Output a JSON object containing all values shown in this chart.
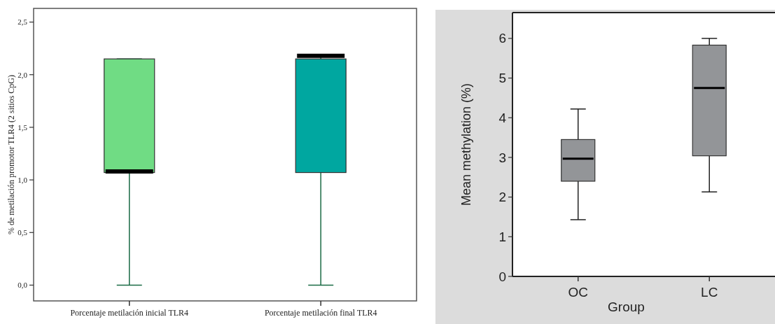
{
  "chart_data": [
    {
      "type": "box",
      "ylabel": "% de metilación promotor TLR4 (2 sitios CpG)",
      "categories": [
        "Porcentaje metilación inicial TLR4",
        "Porcentaje metilación final TLR4"
      ],
      "colors": [
        "#70dc84",
        "#00a7a0"
      ],
      "boxes": [
        {
          "low": 0,
          "q1": 1.07,
          "median": 1.08,
          "q3": 2.15,
          "high": 2.15
        },
        {
          "low": 0,
          "q1": 1.07,
          "median": 2.18,
          "q3": 2.15,
          "high": 2.18
        }
      ],
      "ylim": [
        -0.15,
        2.63
      ],
      "yticks": [
        {
          "value": 0,
          "label": "0,0"
        },
        {
          "value": 0.5,
          "label": "0,5"
        },
        {
          "value": 1,
          "label": "1,0"
        },
        {
          "value": 1.5,
          "label": "1,5"
        },
        {
          "value": 2,
          "label": "2,0"
        },
        {
          "value": 2.5,
          "label": "2,5"
        }
      ],
      "grid": false
    },
    {
      "type": "box",
      "xlabel": "Group",
      "ylabel": "Mean methylation (%)",
      "categories": [
        "OC",
        "LC"
      ],
      "colors": [
        "#939598",
        "#939598"
      ],
      "boxes": [
        {
          "low": 1.43,
          "q1": 2.4,
          "median": 2.97,
          "q3": 3.45,
          "high": 4.22
        },
        {
          "low": 2.13,
          "q1": 3.04,
          "median": 4.75,
          "q3": 5.83,
          "high": 6.0
        }
      ],
      "ylim": [
        0,
        6.65
      ],
      "yticks": [
        0,
        1,
        2,
        3,
        4,
        5,
        6
      ],
      "grid": false
    }
  ]
}
